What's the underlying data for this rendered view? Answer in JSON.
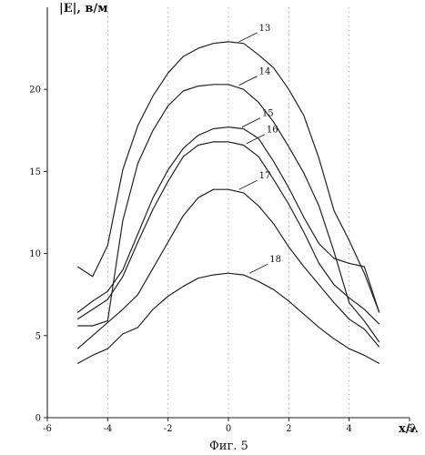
{
  "chart_data": {
    "type": "line",
    "ylabel": "|E|, в/м",
    "xlabel": "x/λ",
    "caption": "Фиг. 5",
    "xlim": [
      -6,
      6
    ],
    "ylim": [
      0,
      25
    ],
    "x_ticks": [
      "-6",
      "-4",
      "-2",
      "0",
      "2",
      "4",
      "6"
    ],
    "y_ticks": [
      "0",
      "5",
      "10",
      "15",
      "20"
    ],
    "grid": "vertical dotted",
    "line_color": "#222222",
    "x": [
      -5,
      -4.5,
      -4,
      -3.5,
      -3,
      -2.5,
      -2,
      -1.5,
      -1,
      -0.5,
      0,
      0.5,
      1,
      1.5,
      2,
      2.5,
      3,
      3.5,
      4,
      4.5,
      5
    ],
    "series": [
      {
        "name": "13",
        "values": [
          9.2,
          8.6,
          10.5,
          15.1,
          17.8,
          19.6,
          21.0,
          22.0,
          22.5,
          22.8,
          22.9,
          22.8,
          22.1,
          21.3,
          20.0,
          18.4,
          15.8,
          12.6,
          10.8,
          8.8,
          6.4
        ]
      },
      {
        "name": "14",
        "values": [
          5.6,
          5.6,
          5.9,
          12.0,
          15.5,
          17.5,
          19.0,
          19.9,
          20.2,
          20.3,
          20.3,
          20.0,
          19.2,
          18.0,
          16.5,
          14.9,
          12.9,
          10.1,
          7.0,
          5.9,
          4.6
        ]
      },
      {
        "name": "15",
        "values": [
          6.4,
          7.1,
          7.7,
          9.0,
          11.2,
          13.4,
          15.1,
          16.4,
          17.2,
          17.6,
          17.7,
          17.6,
          17.0,
          15.6,
          14.0,
          12.2,
          10.6,
          9.7,
          9.4,
          9.2,
          6.4
        ]
      },
      {
        "name": "16",
        "values": [
          6.0,
          6.6,
          7.2,
          8.6,
          10.7,
          12.7,
          14.4,
          15.9,
          16.6,
          16.8,
          16.8,
          16.6,
          15.9,
          14.5,
          13.0,
          11.3,
          9.4,
          8.1,
          7.3,
          6.6,
          5.7
        ]
      },
      {
        "name": "17",
        "values": [
          4.2,
          5.0,
          5.8,
          6.6,
          7.5,
          9.1,
          10.7,
          12.3,
          13.4,
          13.9,
          13.9,
          13.7,
          12.9,
          11.8,
          10.4,
          9.2,
          8.1,
          7.0,
          6.0,
          5.4,
          4.3
        ]
      },
      {
        "name": "18",
        "values": [
          3.3,
          3.8,
          4.2,
          5.1,
          5.5,
          6.6,
          7.4,
          8.0,
          8.5,
          8.7,
          8.8,
          8.7,
          8.3,
          7.8,
          7.1,
          6.3,
          5.5,
          4.8,
          4.2,
          3.8,
          3.3
        ]
      }
    ],
    "label_anchors": [
      {
        "name": "13",
        "x": 0.35,
        "y": 22.9
      },
      {
        "name": "14",
        "x": 0.35,
        "y": 20.25
      },
      {
        "name": "15",
        "x": 0.45,
        "y": 17.7
      },
      {
        "name": "16",
        "x": 0.6,
        "y": 16.7
      },
      {
        "name": "17",
        "x": 0.35,
        "y": 13.9
      },
      {
        "name": "18",
        "x": 0.7,
        "y": 8.8
      }
    ]
  }
}
